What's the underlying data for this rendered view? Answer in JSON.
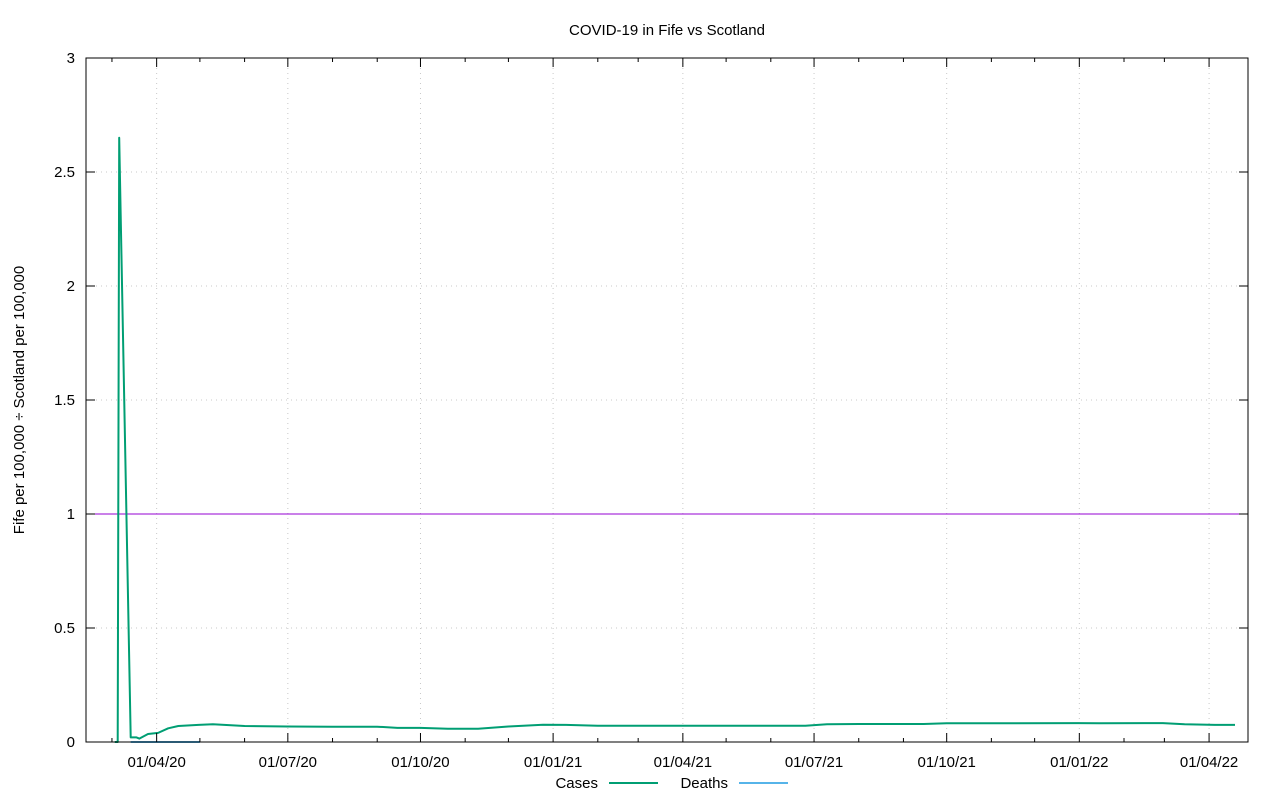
{
  "chart_data": {
    "type": "line",
    "title": "COVID-19 in Fife vs Scotland",
    "xlabel": "",
    "ylabel": "Fife per 100,000 ÷ Scotland per 100,000",
    "x_range": [
      "2020-02-12",
      "2022-04-28"
    ],
    "ylim": [
      0,
      3
    ],
    "yticks": [
      "0",
      "0.5",
      "1",
      "1.5",
      "2",
      "2.5",
      "3"
    ],
    "xticks": [
      {
        "date": "2020-04-01",
        "label": "01/04/20"
      },
      {
        "date": "2020-07-01",
        "label": "01/07/20"
      },
      {
        "date": "2020-10-01",
        "label": "01/10/20"
      },
      {
        "date": "2021-01-01",
        "label": "01/01/21"
      },
      {
        "date": "2021-04-01",
        "label": "01/04/21"
      },
      {
        "date": "2021-07-01",
        "label": "01/07/21"
      },
      {
        "date": "2021-10-01",
        "label": "01/10/21"
      },
      {
        "date": "2022-01-01",
        "label": "01/01/22"
      },
      {
        "date": "2022-04-01",
        "label": "01/04/22"
      }
    ],
    "grid": true,
    "legend_position": "bottom",
    "reference_line": {
      "y": 1,
      "color": "#9400d3"
    },
    "series": [
      {
        "name": "Cases",
        "color": "#009e73",
        "points": [
          [
            "2020-03-03",
            0.0
          ],
          [
            "2020-03-05",
            0.0
          ],
          [
            "2020-03-06",
            2.65
          ],
          [
            "2020-03-14",
            0.02
          ],
          [
            "2020-03-18",
            0.02
          ],
          [
            "2020-03-20",
            0.015
          ],
          [
            "2020-03-26",
            0.035
          ],
          [
            "2020-04-02",
            0.04
          ],
          [
            "2020-04-09",
            0.06
          ],
          [
            "2020-04-16",
            0.07
          ],
          [
            "2020-04-30",
            0.075
          ],
          [
            "2020-05-10",
            0.078
          ],
          [
            "2020-06-01",
            0.07
          ],
          [
            "2020-07-01",
            0.068
          ],
          [
            "2020-08-01",
            0.067
          ],
          [
            "2020-09-01",
            0.067
          ],
          [
            "2020-09-15",
            0.062
          ],
          [
            "2020-10-01",
            0.062
          ],
          [
            "2020-10-20",
            0.058
          ],
          [
            "2020-11-10",
            0.058
          ],
          [
            "2020-12-01",
            0.068
          ],
          [
            "2020-12-25",
            0.076
          ],
          [
            "2021-01-10",
            0.075
          ],
          [
            "2021-02-01",
            0.071
          ],
          [
            "2021-04-01",
            0.071
          ],
          [
            "2021-06-01",
            0.071
          ],
          [
            "2021-06-25",
            0.071
          ],
          [
            "2021-07-10",
            0.078
          ],
          [
            "2021-08-01",
            0.079
          ],
          [
            "2021-09-15",
            0.079
          ],
          [
            "2021-10-01",
            0.082
          ],
          [
            "2021-12-31",
            0.083
          ],
          [
            "2022-01-15",
            0.082
          ],
          [
            "2022-02-28",
            0.083
          ],
          [
            "2022-03-15",
            0.078
          ],
          [
            "2022-04-05",
            0.075
          ],
          [
            "2022-04-19",
            0.075
          ]
        ]
      },
      {
        "name": "Deaths",
        "color": "#56b4e9",
        "points": [
          [
            "2020-03-14",
            0.0
          ],
          [
            "2020-05-01",
            0.0
          ]
        ]
      }
    ]
  }
}
